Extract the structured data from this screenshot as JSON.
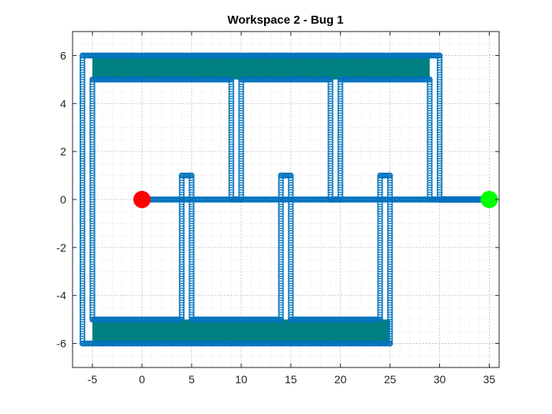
{
  "chart_data": {
    "type": "scatter",
    "title": "Workspace 2 - Bug 1",
    "xlabel": "",
    "ylabel": "",
    "xlim": [
      -7,
      36
    ],
    "ylim": [
      -7,
      7
    ],
    "xticks": [
      -5,
      0,
      5,
      10,
      15,
      20,
      25,
      30,
      35
    ],
    "yticks": [
      -6,
      -4,
      -2,
      0,
      2,
      4,
      6
    ],
    "grid": true,
    "minor_grid": true,
    "colors": {
      "obstacle_fill": "#008080",
      "path": "#0072BD",
      "start": "#FF0000",
      "goal": "#00FF00",
      "axis": "#262626"
    },
    "obstacles": [
      {
        "name": "top-bar",
        "polygon": [
          [
            -6,
            5
          ],
          [
            30,
            5
          ],
          [
            30,
            6
          ],
          [
            -6,
            6
          ]
        ]
      },
      {
        "name": "bottom-bar",
        "polygon": [
          [
            -6,
            -6
          ],
          [
            25,
            -6
          ],
          [
            25,
            -5
          ],
          [
            -6,
            -5
          ]
        ]
      }
    ],
    "boundary_walls": [
      {
        "name": "left-wall",
        "polygon": [
          [
            -6,
            -6
          ],
          [
            -5,
            -6
          ],
          [
            -5,
            6
          ],
          [
            -6,
            6
          ]
        ]
      },
      {
        "name": "top-finger-1",
        "polygon": [
          [
            9,
            0
          ],
          [
            10,
            0
          ],
          [
            10,
            5
          ],
          [
            9,
            5
          ]
        ]
      },
      {
        "name": "top-finger-2",
        "polygon": [
          [
            19,
            0
          ],
          [
            20,
            0
          ],
          [
            20,
            5
          ],
          [
            19,
            5
          ]
        ]
      },
      {
        "name": "right-wall",
        "polygon": [
          [
            29,
            0
          ],
          [
            30,
            0
          ],
          [
            30,
            6
          ],
          [
            29,
            6
          ]
        ]
      },
      {
        "name": "bottom-finger-1",
        "polygon": [
          [
            4,
            -5
          ],
          [
            5,
            -5
          ],
          [
            5,
            1
          ],
          [
            4,
            1
          ]
        ]
      },
      {
        "name": "bottom-finger-2",
        "polygon": [
          [
            14,
            -5
          ],
          [
            15,
            -5
          ],
          [
            15,
            1
          ],
          [
            14,
            1
          ]
        ]
      },
      {
        "name": "bottom-finger-3",
        "polygon": [
          [
            24,
            -5
          ],
          [
            25,
            -5
          ],
          [
            25,
            1
          ],
          [
            24,
            1
          ]
        ]
      }
    ],
    "series": [
      {
        "type": "path",
        "points": [
          [
            0,
            0
          ],
          [
            4,
            0
          ],
          [
            4,
            1
          ],
          [
            5,
            1
          ],
          [
            5,
            -5
          ],
          [
            14,
            -5
          ],
          [
            14,
            1
          ],
          [
            15,
            1
          ],
          [
            15,
            -5
          ],
          [
            24,
            -5
          ],
          [
            24,
            1
          ],
          [
            25,
            1
          ],
          [
            25,
            -6
          ],
          [
            -6,
            -6
          ],
          [
            -6,
            6
          ],
          [
            30,
            6
          ],
          [
            30,
            0
          ],
          [
            29,
            0
          ],
          [
            29,
            5
          ],
          [
            20,
            5
          ],
          [
            20,
            0
          ],
          [
            19,
            0
          ],
          [
            19,
            5
          ],
          [
            10,
            5
          ],
          [
            10,
            0
          ],
          [
            9,
            0
          ],
          [
            9,
            5
          ],
          [
            -5,
            5
          ],
          [
            -5,
            -5
          ],
          [
            4,
            -5
          ],
          [
            4,
            0
          ],
          [
            30,
            0
          ],
          [
            35,
            0
          ]
        ]
      }
    ],
    "start": {
      "x": 0,
      "y": 0
    },
    "goal": {
      "x": 35,
      "y": 0
    }
  }
}
